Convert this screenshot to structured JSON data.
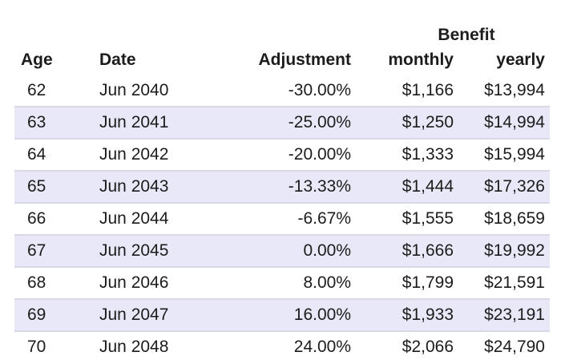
{
  "header": {
    "group_label": "Benefit",
    "columns": {
      "age": "Age",
      "date": "Date",
      "adjustment": "Adjustment",
      "monthly": "monthly",
      "yearly": "yearly"
    }
  },
  "rows": [
    {
      "age": "62",
      "date": "Jun 2040",
      "adjustment": "-30.00%",
      "monthly": "$1,166",
      "yearly": "$13,994"
    },
    {
      "age": "63",
      "date": "Jun 2041",
      "adjustment": "-25.00%",
      "monthly": "$1,250",
      "yearly": "$14,994"
    },
    {
      "age": "64",
      "date": "Jun 2042",
      "adjustment": "-20.00%",
      "monthly": "$1,333",
      "yearly": "$15,994"
    },
    {
      "age": "65",
      "date": "Jun 2043",
      "adjustment": "-13.33%",
      "monthly": "$1,444",
      "yearly": "$17,326"
    },
    {
      "age": "66",
      "date": "Jun 2044",
      "adjustment": "-6.67%",
      "monthly": "$1,555",
      "yearly": "$18,659"
    },
    {
      "age": "67",
      "date": "Jun 2045",
      "adjustment": "0.00%",
      "monthly": "$1,666",
      "yearly": "$19,992"
    },
    {
      "age": "68",
      "date": "Jun 2046",
      "adjustment": "8.00%",
      "monthly": "$1,799",
      "yearly": "$21,591"
    },
    {
      "age": "69",
      "date": "Jun 2047",
      "adjustment": "16.00%",
      "monthly": "$1,933",
      "yearly": "$23,191"
    },
    {
      "age": "70",
      "date": "Jun 2048",
      "adjustment": "24.00%",
      "monthly": "$2,066",
      "yearly": "$24,790"
    }
  ],
  "colors": {
    "stripe": "#e8e8f8",
    "divider": "#d9d9e6",
    "text": "#1c1c1c"
  }
}
